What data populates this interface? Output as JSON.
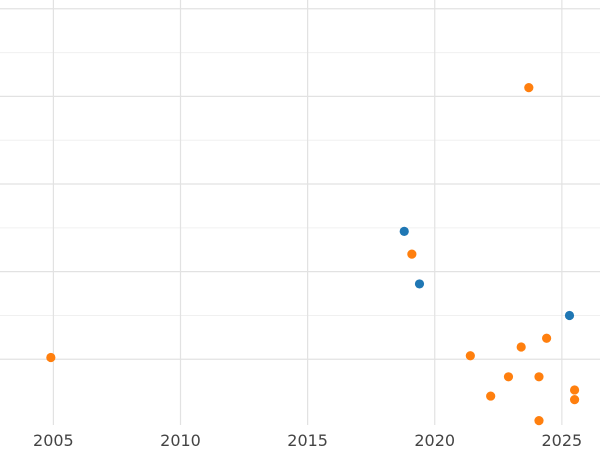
{
  "chart_data": {
    "type": "scatter",
    "title": "",
    "xlabel": "",
    "ylabel": "",
    "grid": true,
    "xlim": [
      2002.9,
      2026.5
    ],
    "ylim": [
      -0.75,
      4.1
    ],
    "x_ticks": [
      2005,
      2010,
      2015,
      2020,
      2025
    ],
    "x_tick_labels": [
      "2005",
      "2010",
      "2015",
      "2020",
      "2025"
    ],
    "y_gridlines": [
      0,
      1,
      2,
      3,
      4
    ],
    "series": [
      {
        "color": "#1f77b4",
        "points": [
          {
            "x": 2018.8,
            "y": 1.46
          },
          {
            "x": 2019.4,
            "y": 0.86
          },
          {
            "x": 2025.3,
            "y": 0.5
          }
        ]
      },
      {
        "color": "#ff7f0e",
        "points": [
          {
            "x": 2004.9,
            "y": 0.02
          },
          {
            "x": 2019.1,
            "y": 1.2
          },
          {
            "x": 2021.4,
            "y": 0.04
          },
          {
            "x": 2022.2,
            "y": -0.42
          },
          {
            "x": 2022.9,
            "y": -0.2
          },
          {
            "x": 2023.4,
            "y": 0.14
          },
          {
            "x": 2023.7,
            "y": 3.1
          },
          {
            "x": 2024.1,
            "y": -0.2
          },
          {
            "x": 2024.1,
            "y": -0.7
          },
          {
            "x": 2024.4,
            "y": 0.24
          },
          {
            "x": 2025.5,
            "y": -0.35
          },
          {
            "x": 2025.5,
            "y": -0.46
          }
        ]
      }
    ]
  }
}
